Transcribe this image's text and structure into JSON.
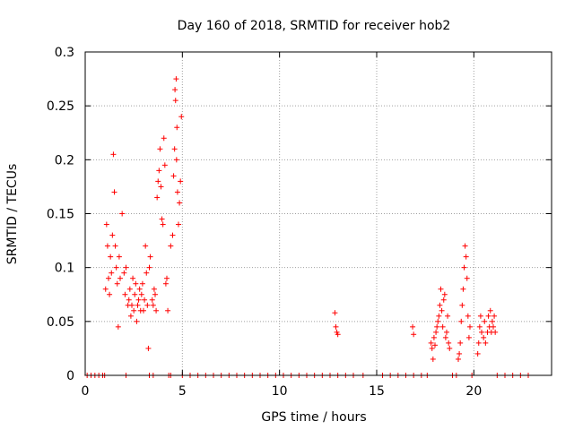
{
  "chart_data": {
    "type": "scatter",
    "title": "Day 160 of 2018, SRMTID for receiver hob2",
    "xlabel": "GPS time / hours",
    "ylabel": "SRMTID / TECUs",
    "xlim": [
      0,
      24
    ],
    "ylim": [
      0,
      0.3
    ],
    "xticks": [
      0,
      5,
      10,
      15,
      20
    ],
    "xtick_labels": [
      "0",
      "5",
      "10",
      "15",
      "20"
    ],
    "yticks": [
      0,
      0.05,
      0.1,
      0.15,
      0.2,
      0.25,
      0.3
    ],
    "ytick_labels": [
      "0",
      "0.05",
      "0.1",
      "0.15",
      "0.2",
      "0.25",
      "0.3"
    ],
    "grid": true,
    "marker": "+",
    "color": "#ff0000",
    "series": [
      {
        "name": "SRMTID",
        "points": [
          [
            0.1,
            0
          ],
          [
            0.3,
            0
          ],
          [
            0.5,
            0
          ],
          [
            0.7,
            0
          ],
          [
            0.9,
            0
          ],
          [
            1.0,
            0
          ],
          [
            2.1,
            0
          ],
          [
            3.3,
            0
          ],
          [
            3.5,
            0
          ],
          [
            4.3,
            0
          ],
          [
            4.4,
            0
          ],
          [
            5.0,
            0
          ],
          [
            5.4,
            0
          ],
          [
            5.8,
            0
          ],
          [
            6.2,
            0
          ],
          [
            6.6,
            0
          ],
          [
            7.0,
            0
          ],
          [
            7.4,
            0
          ],
          [
            7.8,
            0
          ],
          [
            8.2,
            0
          ],
          [
            8.6,
            0
          ],
          [
            9.0,
            0
          ],
          [
            9.4,
            0
          ],
          [
            9.8,
            0
          ],
          [
            10.2,
            0
          ],
          [
            10.6,
            0
          ],
          [
            11.0,
            0
          ],
          [
            11.4,
            0
          ],
          [
            11.8,
            0
          ],
          [
            12.2,
            0
          ],
          [
            12.6,
            0
          ],
          [
            13.0,
            0
          ],
          [
            13.4,
            0
          ],
          [
            13.8,
            0
          ],
          [
            14.3,
            0
          ],
          [
            15.3,
            0
          ],
          [
            15.7,
            0
          ],
          [
            16.1,
            0
          ],
          [
            16.5,
            0
          ],
          [
            16.9,
            0
          ],
          [
            17.3,
            0
          ],
          [
            17.6,
            0
          ],
          [
            18.9,
            0
          ],
          [
            19.1,
            0
          ],
          [
            19.9,
            0
          ],
          [
            21.2,
            0
          ],
          [
            21.6,
            0
          ],
          [
            22.0,
            0
          ],
          [
            22.4,
            0
          ],
          [
            22.8,
            0
          ],
          [
            1.05,
            0.08
          ],
          [
            1.1,
            0.14
          ],
          [
            1.15,
            0.12
          ],
          [
            1.2,
            0.09
          ],
          [
            1.25,
            0.075
          ],
          [
            1.3,
            0.11
          ],
          [
            1.35,
            0.095
          ],
          [
            1.4,
            0.13
          ],
          [
            1.45,
            0.205
          ],
          [
            1.5,
            0.17
          ],
          [
            1.55,
            0.12
          ],
          [
            1.6,
            0.1
          ],
          [
            1.65,
            0.085
          ],
          [
            1.7,
            0.045
          ],
          [
            1.75,
            0.11
          ],
          [
            1.8,
            0.09
          ],
          [
            1.9,
            0.15
          ],
          [
            2.0,
            0.095
          ],
          [
            2.05,
            0.075
          ],
          [
            2.1,
            0.1
          ],
          [
            2.2,
            0.065
          ],
          [
            2.25,
            0.07
          ],
          [
            2.3,
            0.08
          ],
          [
            2.35,
            0.055
          ],
          [
            2.4,
            0.065
          ],
          [
            2.45,
            0.09
          ],
          [
            2.5,
            0.06
          ],
          [
            2.55,
            0.075
          ],
          [
            2.6,
            0.085
          ],
          [
            2.65,
            0.05
          ],
          [
            2.7,
            0.065
          ],
          [
            2.75,
            0.07
          ],
          [
            2.8,
            0.08
          ],
          [
            2.85,
            0.06
          ],
          [
            2.9,
            0.075
          ],
          [
            2.95,
            0.085
          ],
          [
            3.0,
            0.06
          ],
          [
            3.05,
            0.07
          ],
          [
            3.1,
            0.12
          ],
          [
            3.15,
            0.095
          ],
          [
            3.2,
            0.065
          ],
          [
            3.25,
            0.025
          ],
          [
            3.3,
            0.1
          ],
          [
            3.35,
            0.11
          ],
          [
            3.45,
            0.07
          ],
          [
            3.5,
            0.065
          ],
          [
            3.55,
            0.08
          ],
          [
            3.6,
            0.075
          ],
          [
            3.65,
            0.06
          ],
          [
            3.7,
            0.165
          ],
          [
            3.75,
            0.18
          ],
          [
            3.8,
            0.19
          ],
          [
            3.85,
            0.21
          ],
          [
            3.9,
            0.175
          ],
          [
            3.95,
            0.145
          ],
          [
            4.0,
            0.14
          ],
          [
            4.05,
            0.22
          ],
          [
            4.1,
            0.195
          ],
          [
            4.15,
            0.085
          ],
          [
            4.2,
            0.09
          ],
          [
            4.25,
            0.06
          ],
          [
            4.4,
            0.12
          ],
          [
            4.5,
            0.13
          ],
          [
            4.55,
            0.185
          ],
          [
            4.6,
            0.21
          ],
          [
            4.62,
            0.265
          ],
          [
            4.65,
            0.255
          ],
          [
            4.68,
            0.275
          ],
          [
            4.7,
            0.2
          ],
          [
            4.72,
            0.23
          ],
          [
            4.75,
            0.17
          ],
          [
            4.8,
            0.14
          ],
          [
            4.85,
            0.16
          ],
          [
            4.9,
            0.18
          ],
          [
            4.95,
            0.24
          ],
          [
            12.85,
            0.058
          ],
          [
            12.9,
            0.045
          ],
          [
            12.95,
            0.04
          ],
          [
            13.0,
            0.038
          ],
          [
            16.85,
            0.045
          ],
          [
            16.9,
            0.038
          ],
          [
            17.8,
            0.03
          ],
          [
            17.85,
            0.025
          ],
          [
            17.9,
            0.015
          ],
          [
            17.95,
            0.035
          ],
          [
            18.0,
            0.028
          ],
          [
            18.05,
            0.04
          ],
          [
            18.1,
            0.045
          ],
          [
            18.15,
            0.05
          ],
          [
            18.2,
            0.055
          ],
          [
            18.25,
            0.065
          ],
          [
            18.3,
            0.08
          ],
          [
            18.35,
            0.06
          ],
          [
            18.4,
            0.045
          ],
          [
            18.45,
            0.07
          ],
          [
            18.5,
            0.075
          ],
          [
            18.55,
            0.035
          ],
          [
            18.6,
            0.04
          ],
          [
            18.65,
            0.055
          ],
          [
            18.7,
            0.03
          ],
          [
            18.75,
            0.025
          ],
          [
            19.2,
            0.015
          ],
          [
            19.25,
            0.02
          ],
          [
            19.3,
            0.03
          ],
          [
            19.35,
            0.05
          ],
          [
            19.4,
            0.065
          ],
          [
            19.45,
            0.08
          ],
          [
            19.5,
            0.1
          ],
          [
            19.55,
            0.12
          ],
          [
            19.6,
            0.11
          ],
          [
            19.65,
            0.09
          ],
          [
            19.7,
            0.055
          ],
          [
            19.75,
            0.035
          ],
          [
            19.8,
            0.045
          ],
          [
            20.2,
            0.02
          ],
          [
            20.25,
            0.03
          ],
          [
            20.3,
            0.045
          ],
          [
            20.35,
            0.055
          ],
          [
            20.4,
            0.04
          ],
          [
            20.5,
            0.035
          ],
          [
            20.55,
            0.05
          ],
          [
            20.6,
            0.03
          ],
          [
            20.7,
            0.04
          ],
          [
            20.75,
            0.055
          ],
          [
            20.8,
            0.045
          ],
          [
            20.85,
            0.06
          ],
          [
            20.9,
            0.04
          ],
          [
            20.95,
            0.05
          ],
          [
            21.0,
            0.045
          ],
          [
            21.05,
            0.055
          ],
          [
            21.1,
            0.04
          ]
        ]
      }
    ]
  }
}
